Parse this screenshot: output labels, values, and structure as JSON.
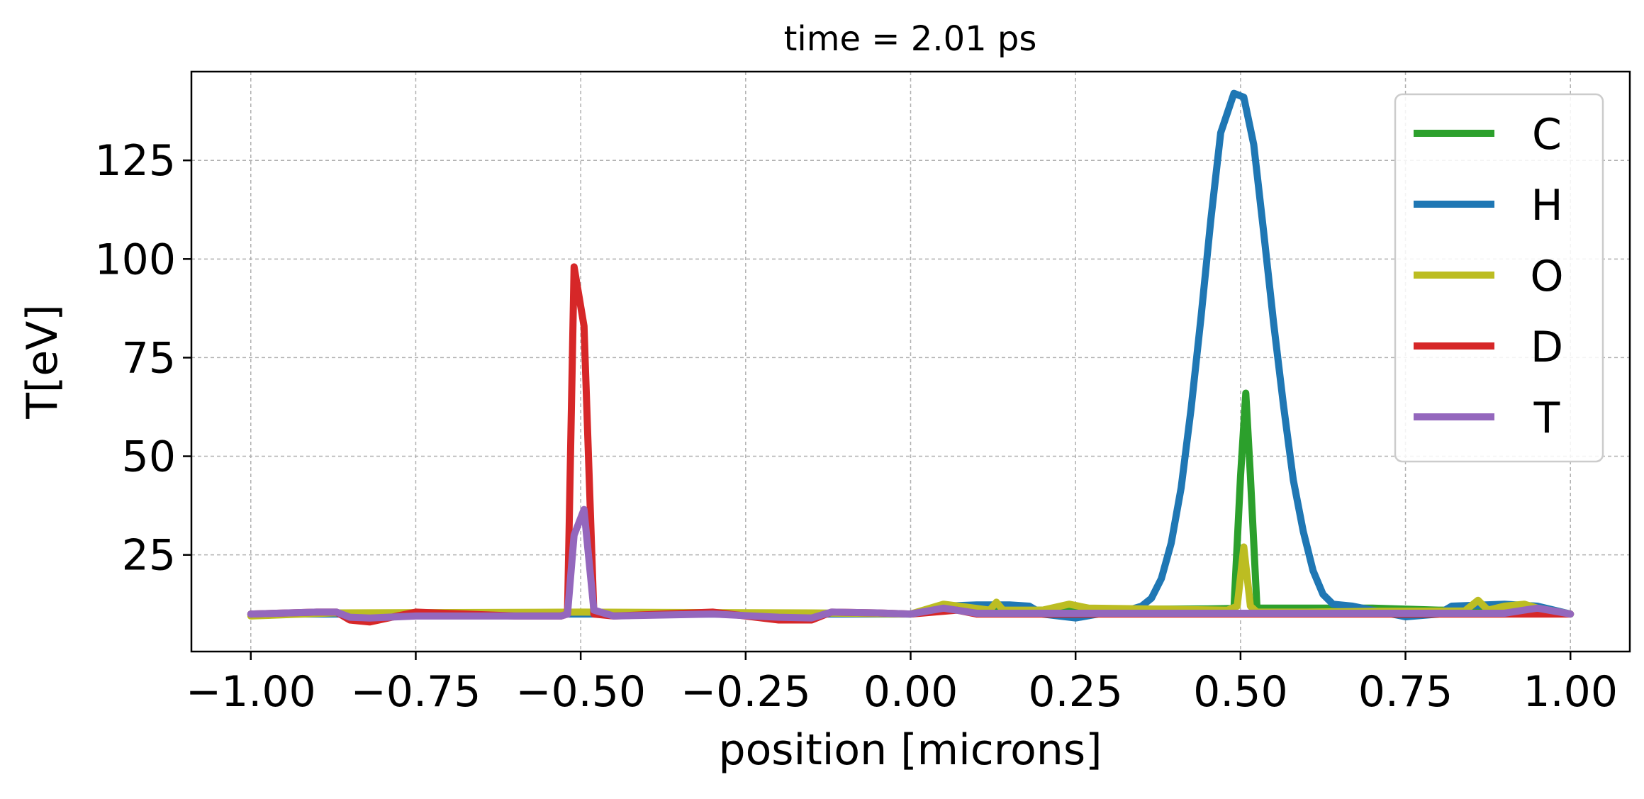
{
  "chart_data": {
    "type": "line",
    "title": "time =  2.01 ps",
    "xlabel": "position [microns]",
    "ylabel": "T[eV]",
    "xlim": [
      -1.09,
      1.09
    ],
    "ylim": [
      0.5,
      147.5
    ],
    "xticks": [
      -1.0,
      -0.75,
      -0.5,
      -0.25,
      0.0,
      0.25,
      0.5,
      0.75,
      1.0
    ],
    "xtick_labels": [
      "−1.00",
      "−0.75",
      "−0.50",
      "−0.25",
      "0.00",
      "0.25",
      "0.50",
      "0.75",
      "1.00"
    ],
    "yticks": [
      25,
      50,
      75,
      100,
      125
    ],
    "ytick_labels": [
      "25",
      "50",
      "75",
      "100",
      "125"
    ],
    "grid": true,
    "legend_position": "top-right",
    "series": [
      {
        "name": "C",
        "color": "#2ca02c",
        "points": [
          [
            -1.0,
            10
          ],
          [
            -0.75,
            10.3
          ],
          [
            -0.6,
            10.3
          ],
          [
            -0.5,
            10.3
          ],
          [
            -0.25,
            10.3
          ],
          [
            -0.1,
            10.2
          ],
          [
            0.0,
            10
          ],
          [
            0.05,
            11
          ],
          [
            0.2,
            11
          ],
          [
            0.3,
            11.2
          ],
          [
            0.45,
            11.3
          ],
          [
            0.49,
            11.4
          ],
          [
            0.5,
            45
          ],
          [
            0.508,
            66
          ],
          [
            0.515,
            45
          ],
          [
            0.525,
            11.5
          ],
          [
            0.6,
            11.5
          ],
          [
            0.7,
            11.5
          ],
          [
            0.8,
            11
          ],
          [
            0.9,
            11
          ],
          [
            0.95,
            11.5
          ],
          [
            1.0,
            10
          ]
        ]
      },
      {
        "name": "H",
        "color": "#1f77b4",
        "points": [
          [
            -1.0,
            10
          ],
          [
            -0.5,
            10
          ],
          [
            0.0,
            10
          ],
          [
            0.05,
            12
          ],
          [
            0.1,
            12.3
          ],
          [
            0.15,
            12.3
          ],
          [
            0.18,
            12
          ],
          [
            0.2,
            10
          ],
          [
            0.25,
            9
          ],
          [
            0.3,
            10.5
          ],
          [
            0.33,
            11
          ],
          [
            0.35,
            12
          ],
          [
            0.365,
            14
          ],
          [
            0.38,
            19
          ],
          [
            0.395,
            28
          ],
          [
            0.41,
            42
          ],
          [
            0.425,
            62
          ],
          [
            0.44,
            85
          ],
          [
            0.455,
            110
          ],
          [
            0.47,
            132
          ],
          [
            0.49,
            142
          ],
          [
            0.505,
            141
          ],
          [
            0.52,
            129
          ],
          [
            0.535,
            107
          ],
          [
            0.55,
            84
          ],
          [
            0.565,
            63
          ],
          [
            0.58,
            44
          ],
          [
            0.595,
            31
          ],
          [
            0.61,
            21
          ],
          [
            0.625,
            15
          ],
          [
            0.64,
            12.5
          ],
          [
            0.67,
            12
          ],
          [
            0.7,
            11
          ],
          [
            0.75,
            9.3
          ],
          [
            0.8,
            10
          ],
          [
            0.82,
            12
          ],
          [
            0.9,
            12.5
          ],
          [
            0.95,
            12
          ],
          [
            1.0,
            10
          ]
        ]
      },
      {
        "name": "O",
        "color": "#bcbd22",
        "points": [
          [
            -1.0,
            9.5
          ],
          [
            -0.875,
            10.3
          ],
          [
            -0.5,
            10.5
          ],
          [
            -0.15,
            10.3
          ],
          [
            0.0,
            10
          ],
          [
            0.05,
            12.5
          ],
          [
            0.12,
            11
          ],
          [
            0.13,
            13
          ],
          [
            0.14,
            11
          ],
          [
            0.2,
            11
          ],
          [
            0.24,
            12.5
          ],
          [
            0.27,
            11.5
          ],
          [
            0.4,
            11.2
          ],
          [
            0.48,
            11
          ],
          [
            0.495,
            12
          ],
          [
            0.505,
            27
          ],
          [
            0.515,
            12
          ],
          [
            0.525,
            10.5
          ],
          [
            0.6,
            10.5
          ],
          [
            0.7,
            10.7
          ],
          [
            0.84,
            10.8
          ],
          [
            0.86,
            13.5
          ],
          [
            0.875,
            11
          ],
          [
            0.9,
            12
          ],
          [
            0.93,
            12.5
          ],
          [
            0.95,
            11.5
          ],
          [
            1.0,
            10
          ]
        ]
      },
      {
        "name": "D",
        "color": "#d62728",
        "points": [
          [
            -1.0,
            10
          ],
          [
            -0.9,
            10.5
          ],
          [
            -0.87,
            10.5
          ],
          [
            -0.85,
            8.5
          ],
          [
            -0.82,
            8
          ],
          [
            -0.75,
            10.5
          ],
          [
            -0.6,
            9.5
          ],
          [
            -0.53,
            9.5
          ],
          [
            -0.52,
            10
          ],
          [
            -0.51,
            98
          ],
          [
            -0.495,
            83
          ],
          [
            -0.48,
            10
          ],
          [
            -0.45,
            9.5
          ],
          [
            -0.3,
            10.5
          ],
          [
            -0.25,
            9.5
          ],
          [
            -0.2,
            8.5
          ],
          [
            -0.15,
            8.5
          ],
          [
            -0.12,
            10.5
          ],
          [
            -0.05,
            10.3
          ],
          [
            0.0,
            10
          ],
          [
            0.07,
            11
          ],
          [
            0.1,
            10
          ],
          [
            1.0,
            10
          ]
        ]
      },
      {
        "name": "T",
        "color": "#9467bd",
        "points": [
          [
            -1.0,
            10
          ],
          [
            -0.9,
            10.5
          ],
          [
            -0.87,
            10.5
          ],
          [
            -0.85,
            9.2
          ],
          [
            -0.82,
            9
          ],
          [
            -0.75,
            9.5
          ],
          [
            -0.6,
            9.5
          ],
          [
            -0.53,
            9.5
          ],
          [
            -0.52,
            10
          ],
          [
            -0.51,
            30
          ],
          [
            -0.495,
            36.5
          ],
          [
            -0.48,
            11
          ],
          [
            -0.45,
            9.5
          ],
          [
            -0.3,
            10
          ],
          [
            -0.2,
            9.2
          ],
          [
            -0.15,
            9
          ],
          [
            -0.12,
            10.5
          ],
          [
            -0.05,
            10.3
          ],
          [
            0.0,
            10
          ],
          [
            0.05,
            11.5
          ],
          [
            0.1,
            10.2
          ],
          [
            0.5,
            10.2
          ],
          [
            0.8,
            10.2
          ],
          [
            0.9,
            10.2
          ],
          [
            0.93,
            11
          ],
          [
            0.95,
            11.5
          ],
          [
            1.0,
            10
          ]
        ]
      }
    ]
  }
}
